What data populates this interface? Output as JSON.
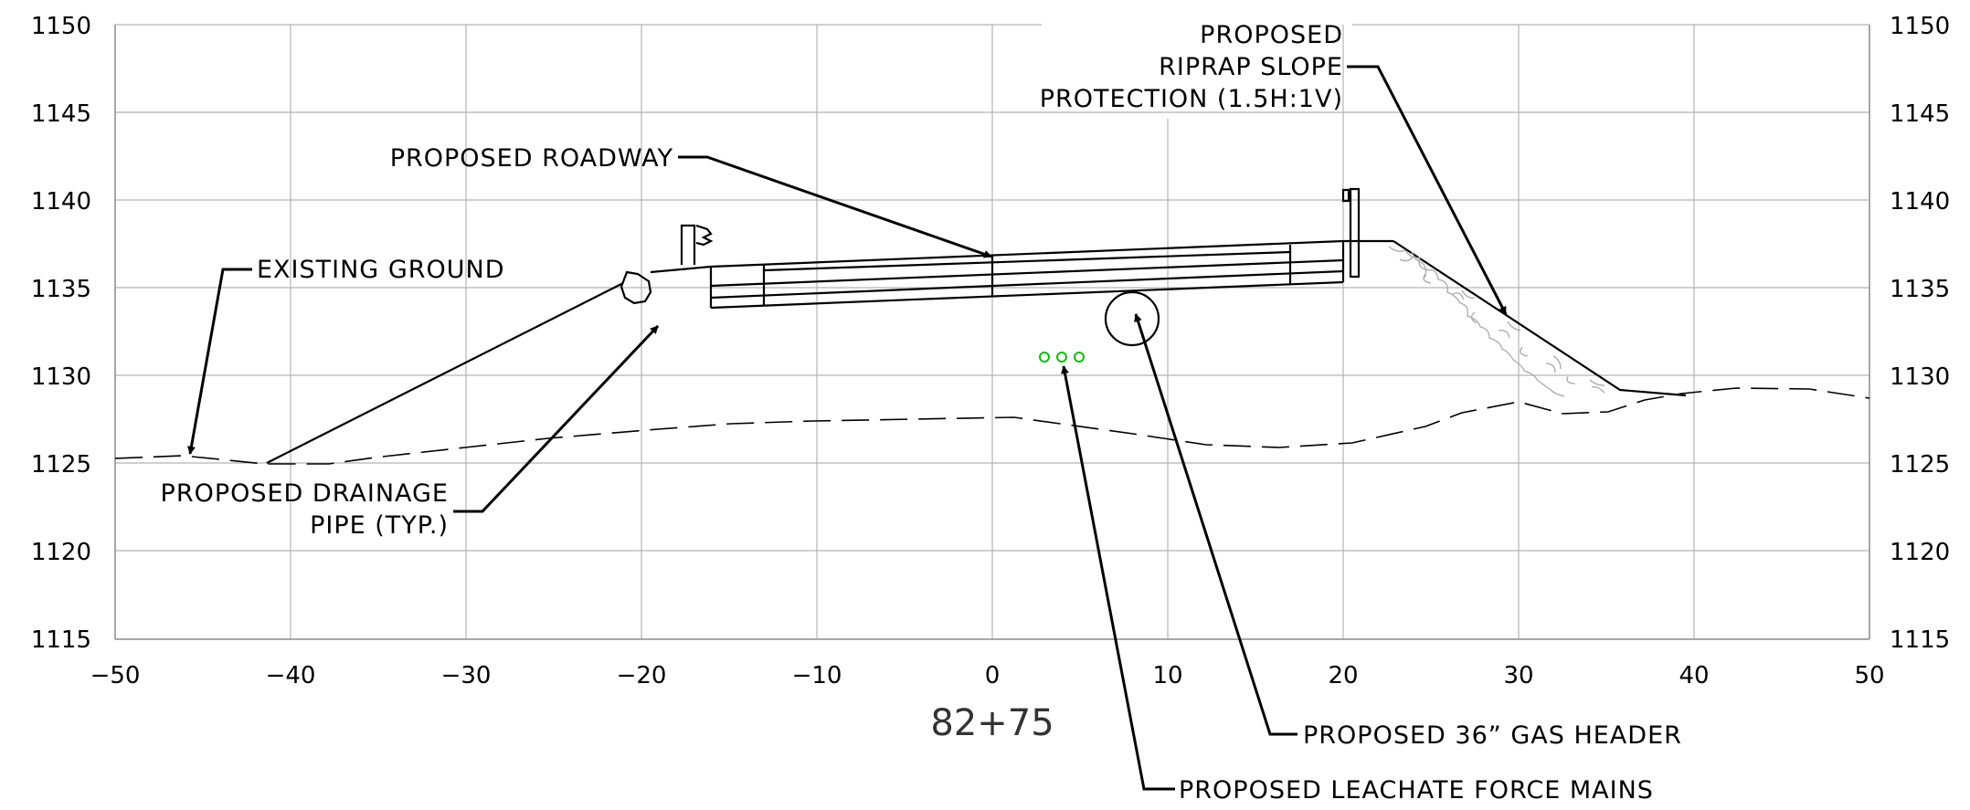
{
  "station": "82+75",
  "axes": {
    "x_ticks": [
      "−50",
      "−40",
      "−30",
      "−20",
      "−10",
      "0",
      "10",
      "20",
      "30",
      "40",
      "50"
    ],
    "y_ticks": [
      "1150",
      "1145",
      "1140",
      "1135",
      "1130",
      "1125",
      "1120",
      "1115"
    ],
    "x_range": [
      -50,
      50
    ],
    "y_range": [
      1115,
      1150
    ]
  },
  "labels": {
    "existing_ground": "EXISTING GROUND",
    "roadway": "PROPOSED ROADWAY",
    "drainage_line1": "PROPOSED DRAINAGE",
    "drainage_line2": "PIPE (TYP.)",
    "riprap_line1": "PROPOSED",
    "riprap_line2": "RIPRAP SLOPE",
    "riprap_line3": "PROTECTION (1.5H:1V)",
    "gas_header": "PROPOSED 36” GAS HEADER",
    "leachate": "PROPOSED LEACHATE FORCE MAINS"
  },
  "colors": {
    "leachate_pipes": "#11bb11",
    "grid": "#b4b4b4"
  }
}
